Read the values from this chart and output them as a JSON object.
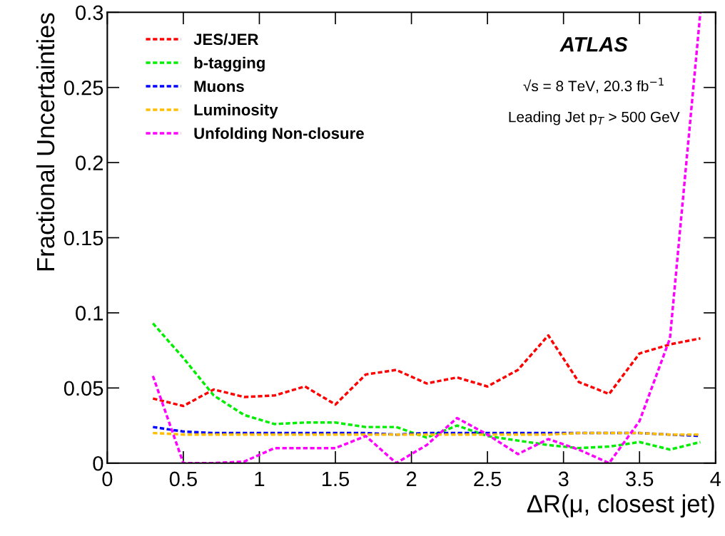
{
  "chart_data": {
    "type": "line",
    "xlabel": "ΔR(μ, closest jet)",
    "ylabel": "Fractional Uncertainties",
    "x": [
      0.3,
      0.5,
      0.7,
      0.9,
      1.1,
      1.3,
      1.5,
      1.7,
      1.9,
      2.1,
      2.3,
      2.5,
      2.7,
      2.9,
      3.1,
      3.3,
      3.5,
      3.7,
      3.9
    ],
    "series": [
      {
        "name": "JES/JER",
        "color": "#ff0000",
        "values": [
          0.043,
          0.038,
          0.049,
          0.044,
          0.045,
          0.051,
          0.039,
          0.059,
          0.062,
          0.053,
          0.057,
          0.051,
          0.062,
          0.085,
          0.054,
          0.046,
          0.073,
          0.079,
          0.083
        ]
      },
      {
        "name": "b-tagging",
        "color": "#00ee00",
        "values": [
          0.093,
          0.07,
          0.045,
          0.032,
          0.026,
          0.027,
          0.027,
          0.024,
          0.024,
          0.017,
          0.025,
          0.018,
          0.015,
          0.012,
          0.01,
          0.011,
          0.014,
          0.009,
          0.014
        ]
      },
      {
        "name": "Muons",
        "color": "#0000ff",
        "values": [
          0.024,
          0.021,
          0.02,
          0.02,
          0.02,
          0.02,
          0.02,
          0.02,
          0.019,
          0.02,
          0.02,
          0.02,
          0.02,
          0.02,
          0.02,
          0.02,
          0.02,
          0.019,
          0.018
        ]
      },
      {
        "name": "Luminosity",
        "color": "#ffbf00",
        "values": [
          0.02,
          0.019,
          0.019,
          0.019,
          0.019,
          0.019,
          0.019,
          0.019,
          0.019,
          0.019,
          0.019,
          0.019,
          0.019,
          0.019,
          0.02,
          0.02,
          0.02,
          0.019,
          0.019
        ]
      },
      {
        "name": "Unfolding Non-closure",
        "color": "#ff00ff",
        "values": [
          0.058,
          0.0,
          0.0,
          0.001,
          0.01,
          0.01,
          0.01,
          0.018,
          0.0,
          0.012,
          0.03,
          0.019,
          0.006,
          0.016,
          0.009,
          0.0,
          0.028,
          0.083,
          0.3
        ]
      }
    ],
    "xlim": [
      0,
      4
    ],
    "xticks": [
      0,
      0.5,
      1,
      1.5,
      2,
      2.5,
      3,
      3.5,
      4
    ],
    "ylim": [
      0,
      0.3
    ],
    "yticks": [
      0,
      0.05,
      0.1,
      0.15,
      0.2,
      0.25,
      0.3
    ],
    "line_style": "dashed",
    "marker": "none",
    "grid": false,
    "legend": "top left",
    "annotations": [
      "ATLAS",
      "√s = 8 TeV, 20.3 fb$^{−1}$",
      "Leading Jet p$_{T}$ > 500 GeV"
    ]
  }
}
